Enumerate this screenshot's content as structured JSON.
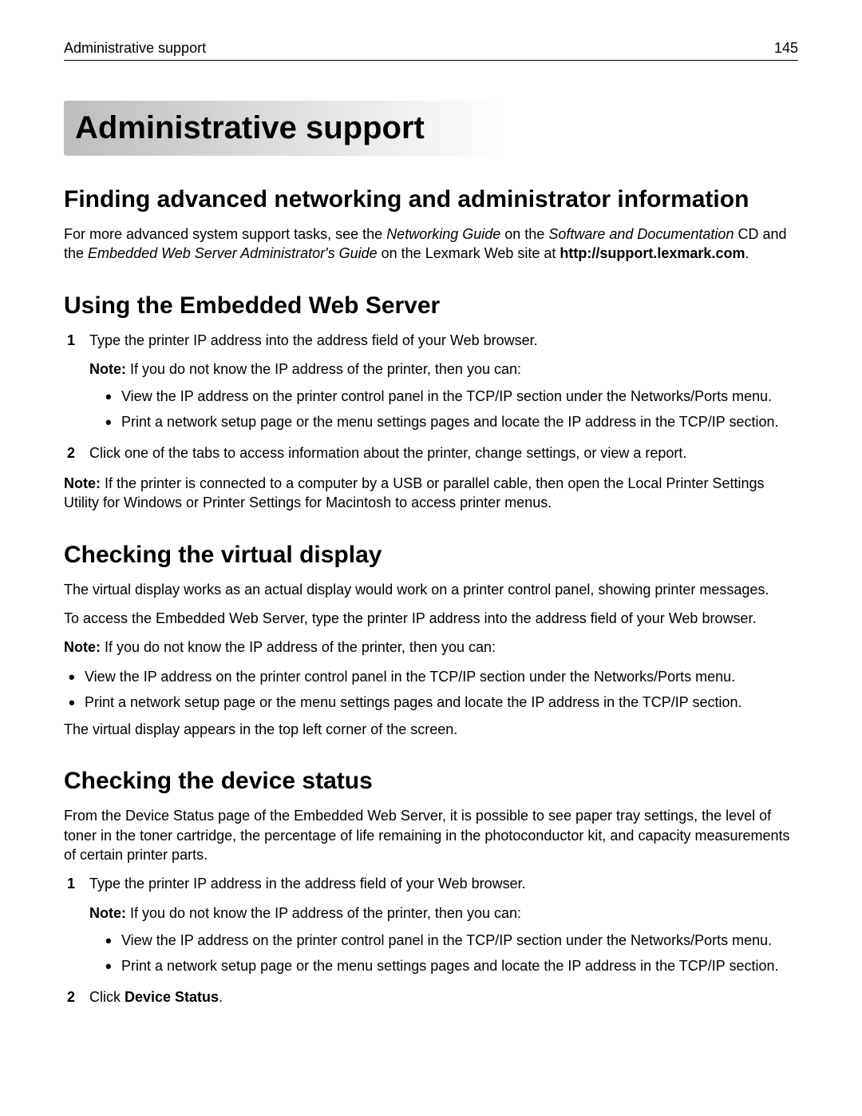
{
  "header": {
    "title": "Administrative support",
    "page_number": "145"
  },
  "main_title": "Administrative support",
  "section1": {
    "heading": "Finding advanced networking and administrator information",
    "para_prefix": "For more advanced system support tasks, see the ",
    "ital1": "Networking Guide",
    "mid1": " on the ",
    "ital2": "Software and Documentation",
    "mid2": " CD and the ",
    "ital3": "Embedded Web Server Administrator's Guide",
    "mid3": " on the Lexmark Web site at ",
    "url_bold": "http://support.lexmark.com",
    "suffix": "."
  },
  "section2": {
    "heading": "Using the Embedded Web Server",
    "step1": "Type the printer IP address into the address field of your Web browser.",
    "note_label": "Note:",
    "note_text": " If you do not know the IP address of the printer, then you can:",
    "bullet1": "View the IP address on the printer control panel in the TCP/IP section under the Networks/Ports menu.",
    "bullet2": "Print a network setup page or the menu settings pages and locate the IP address in the TCP/IP section.",
    "step2": "Click one of the tabs to access information about the printer, change settings, or view a report.",
    "end_note_label": "Note:",
    "end_note_text": " If the printer is connected to a computer by a USB or parallel cable, then open the Local Printer Settings Utility for Windows or Printer Settings for Macintosh to access printer menus."
  },
  "section3": {
    "heading": "Checking the virtual display",
    "p1": "The virtual display works as an actual display would work on a printer control panel, showing printer messages.",
    "p2": "To access the Embedded Web Server, type the printer IP address into the address field of your Web browser.",
    "note_label": "Note:",
    "note_text": " If you do not know the IP address of the printer, then you can:",
    "bullet1": "View the IP address on the printer control panel in the TCP/IP section under the Networks/Ports menu.",
    "bullet2": "Print a network setup page or the menu settings pages and locate the IP address in the TCP/IP section.",
    "p3": "The virtual display appears in the top left corner of the screen."
  },
  "section4": {
    "heading": "Checking the device status",
    "p1": "From the Device Status page of the Embedded Web Server, it is possible to see paper tray settings, the level of toner in the toner cartridge, the percentage of life remaining in the photoconductor kit, and capacity measurements of certain printer parts.",
    "step1": "Type the printer IP address in the address field of your Web browser.",
    "note_label": "Note:",
    "note_text": " If you do not know the IP address of the printer, then you can:",
    "bullet1": "View the IP address on the printer control panel in the TCP/IP section under the Networks/Ports menu.",
    "bullet2": "Print a network setup page or the menu settings pages and locate the IP address in the TCP/IP section.",
    "step2_prefix": "Click ",
    "step2_bold": "Device Status",
    "step2_suffix": "."
  }
}
